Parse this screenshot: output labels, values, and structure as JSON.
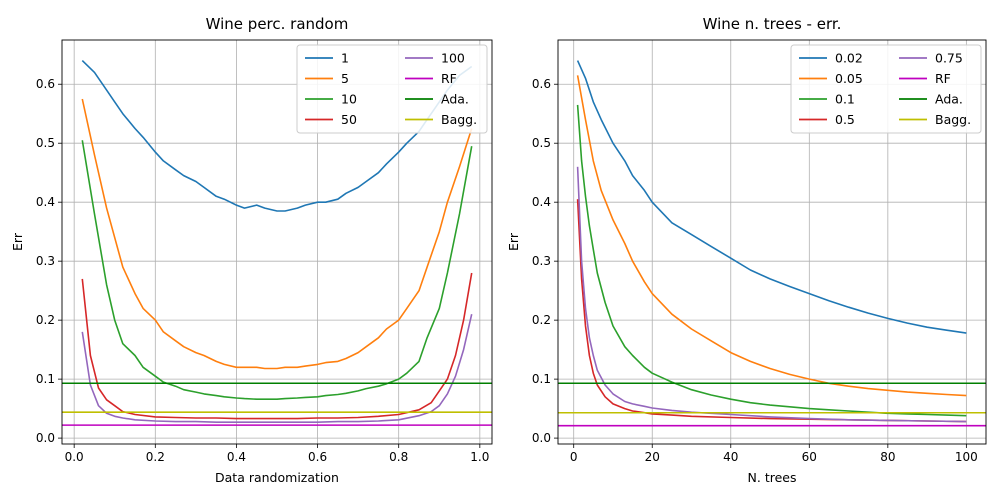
{
  "chart_data": [
    {
      "type": "line",
      "title": "Wine perc. random",
      "xlabel": "Data randomization",
      "ylabel": "Err",
      "xlim": [
        -0.03,
        1.03
      ],
      "ylim": [
        -0.01,
        0.675
      ],
      "xticks": [
        0.0,
        0.2,
        0.4,
        0.6,
        0.8,
        1.0
      ],
      "xtick_labels": [
        "0.0",
        "0.2",
        "0.4",
        "0.6",
        "0.8",
        "1.0"
      ],
      "yticks": [
        0.0,
        0.1,
        0.2,
        0.3,
        0.4,
        0.5,
        0.6
      ],
      "ytick_labels": [
        "0.0",
        "0.1",
        "0.2",
        "0.3",
        "0.4",
        "0.5",
        "0.6"
      ],
      "grid": true,
      "legend_position": "top-right",
      "legend_columns": 2,
      "series": [
        {
          "name": "1",
          "color": "#1f77b4",
          "x": [
            0.02,
            0.05,
            0.08,
            0.1,
            0.12,
            0.15,
            0.17,
            0.2,
            0.22,
            0.25,
            0.27,
            0.3,
            0.32,
            0.35,
            0.37,
            0.4,
            0.42,
            0.45,
            0.47,
            0.5,
            0.52,
            0.55,
            0.57,
            0.6,
            0.62,
            0.65,
            0.67,
            0.7,
            0.72,
            0.75,
            0.77,
            0.8,
            0.82,
            0.85,
            0.87,
            0.9,
            0.92,
            0.95,
            0.98
          ],
          "y": [
            0.64,
            0.62,
            0.59,
            0.57,
            0.55,
            0.525,
            0.51,
            0.485,
            0.47,
            0.455,
            0.445,
            0.435,
            0.425,
            0.41,
            0.405,
            0.395,
            0.39,
            0.395,
            0.39,
            0.385,
            0.385,
            0.39,
            0.395,
            0.4,
            0.4,
            0.405,
            0.415,
            0.425,
            0.435,
            0.45,
            0.465,
            0.485,
            0.5,
            0.52,
            0.54,
            0.57,
            0.59,
            0.615,
            0.63
          ]
        },
        {
          "name": "5",
          "color": "#ff7f0e",
          "x": [
            0.02,
            0.05,
            0.08,
            0.1,
            0.12,
            0.15,
            0.17,
            0.2,
            0.22,
            0.25,
            0.27,
            0.3,
            0.32,
            0.35,
            0.37,
            0.4,
            0.42,
            0.45,
            0.47,
            0.5,
            0.52,
            0.55,
            0.57,
            0.6,
            0.62,
            0.65,
            0.67,
            0.7,
            0.72,
            0.75,
            0.77,
            0.8,
            0.82,
            0.85,
            0.87,
            0.9,
            0.92,
            0.95,
            0.98
          ],
          "y": [
            0.575,
            0.48,
            0.39,
            0.34,
            0.29,
            0.245,
            0.22,
            0.2,
            0.18,
            0.165,
            0.155,
            0.145,
            0.14,
            0.13,
            0.125,
            0.12,
            0.12,
            0.12,
            0.118,
            0.118,
            0.12,
            0.12,
            0.122,
            0.125,
            0.128,
            0.13,
            0.135,
            0.145,
            0.155,
            0.17,
            0.185,
            0.2,
            0.22,
            0.25,
            0.29,
            0.35,
            0.4,
            0.46,
            0.525
          ]
        },
        {
          "name": "10",
          "color": "#2ca02c",
          "x": [
            0.02,
            0.05,
            0.08,
            0.1,
            0.12,
            0.15,
            0.17,
            0.2,
            0.22,
            0.25,
            0.27,
            0.3,
            0.32,
            0.35,
            0.37,
            0.4,
            0.42,
            0.45,
            0.47,
            0.5,
            0.52,
            0.55,
            0.57,
            0.6,
            0.62,
            0.65,
            0.67,
            0.7,
            0.72,
            0.75,
            0.77,
            0.8,
            0.82,
            0.85,
            0.87,
            0.9,
            0.92,
            0.95,
            0.98
          ],
          "y": [
            0.505,
            0.38,
            0.26,
            0.2,
            0.16,
            0.14,
            0.12,
            0.105,
            0.095,
            0.088,
            0.082,
            0.078,
            0.075,
            0.072,
            0.07,
            0.068,
            0.067,
            0.066,
            0.066,
            0.066,
            0.067,
            0.068,
            0.069,
            0.07,
            0.072,
            0.074,
            0.076,
            0.08,
            0.084,
            0.088,
            0.092,
            0.1,
            0.11,
            0.13,
            0.17,
            0.22,
            0.28,
            0.38,
            0.495
          ]
        },
        {
          "name": "50",
          "color": "#d62728",
          "x": [
            0.02,
            0.04,
            0.06,
            0.08,
            0.1,
            0.12,
            0.15,
            0.2,
            0.25,
            0.3,
            0.35,
            0.4,
            0.45,
            0.5,
            0.55,
            0.6,
            0.65,
            0.7,
            0.75,
            0.8,
            0.85,
            0.88,
            0.9,
            0.92,
            0.94,
            0.96,
            0.98
          ],
          "y": [
            0.27,
            0.14,
            0.085,
            0.065,
            0.055,
            0.045,
            0.04,
            0.036,
            0.035,
            0.034,
            0.034,
            0.033,
            0.033,
            0.033,
            0.033,
            0.034,
            0.034,
            0.035,
            0.037,
            0.04,
            0.048,
            0.06,
            0.08,
            0.1,
            0.14,
            0.2,
            0.28
          ]
        },
        {
          "name": "100",
          "color": "#9467bd",
          "x": [
            0.02,
            0.04,
            0.06,
            0.08,
            0.1,
            0.12,
            0.15,
            0.2,
            0.25,
            0.3,
            0.35,
            0.4,
            0.45,
            0.5,
            0.55,
            0.6,
            0.65,
            0.7,
            0.75,
            0.8,
            0.85,
            0.88,
            0.9,
            0.92,
            0.94,
            0.96,
            0.98
          ],
          "y": [
            0.18,
            0.09,
            0.055,
            0.042,
            0.037,
            0.034,
            0.031,
            0.029,
            0.028,
            0.028,
            0.027,
            0.027,
            0.027,
            0.027,
            0.027,
            0.027,
            0.028,
            0.028,
            0.029,
            0.031,
            0.038,
            0.045,
            0.055,
            0.075,
            0.105,
            0.15,
            0.21
          ]
        },
        {
          "name": "RF",
          "color": "#bf00bf",
          "hline": 0.022
        },
        {
          "name": "Ada.",
          "color": "#007f00",
          "hline": 0.093
        },
        {
          "name": "Bagg.",
          "color": "#bfbf00",
          "hline": 0.044
        }
      ]
    },
    {
      "type": "line",
      "title": "Wine n. trees - err.",
      "xlabel": "N. trees",
      "ylabel": "Err",
      "xlim": [
        -4,
        105
      ],
      "ylim": [
        -0.01,
        0.675
      ],
      "xticks": [
        0,
        20,
        40,
        60,
        80,
        100
      ],
      "xtick_labels": [
        "0",
        "20",
        "40",
        "60",
        "80",
        "100"
      ],
      "yticks": [
        0.0,
        0.1,
        0.2,
        0.3,
        0.4,
        0.5,
        0.6
      ],
      "ytick_labels": [
        "0.0",
        "0.1",
        "0.2",
        "0.3",
        "0.4",
        "0.5",
        "0.6"
      ],
      "grid": true,
      "legend_position": "top-right",
      "legend_columns": 2,
      "series": [
        {
          "name": "0.02",
          "color": "#1f77b4",
          "x": [
            1,
            3,
            5,
            7,
            10,
            13,
            15,
            18,
            20,
            25,
            30,
            35,
            40,
            45,
            50,
            55,
            60,
            65,
            70,
            75,
            80,
            85,
            90,
            95,
            100
          ],
          "y": [
            0.64,
            0.61,
            0.57,
            0.54,
            0.5,
            0.47,
            0.445,
            0.42,
            0.4,
            0.365,
            0.345,
            0.325,
            0.305,
            0.285,
            0.27,
            0.257,
            0.245,
            0.233,
            0.222,
            0.212,
            0.203,
            0.195,
            0.188,
            0.183,
            0.178
          ]
        },
        {
          "name": "0.05",
          "color": "#ff7f0e",
          "x": [
            1,
            3,
            5,
            7,
            10,
            13,
            15,
            18,
            20,
            25,
            30,
            35,
            40,
            45,
            50,
            55,
            60,
            65,
            70,
            75,
            80,
            85,
            90,
            95,
            100
          ],
          "y": [
            0.615,
            0.54,
            0.47,
            0.42,
            0.37,
            0.33,
            0.3,
            0.265,
            0.245,
            0.21,
            0.185,
            0.165,
            0.145,
            0.13,
            0.118,
            0.108,
            0.1,
            0.093,
            0.088,
            0.084,
            0.081,
            0.078,
            0.076,
            0.074,
            0.072
          ]
        },
        {
          "name": "0.1",
          "color": "#2ca02c",
          "x": [
            1,
            2,
            3,
            4,
            5,
            6,
            8,
            10,
            13,
            15,
            18,
            20,
            25,
            30,
            35,
            40,
            45,
            50,
            55,
            60,
            65,
            70,
            75,
            80,
            85,
            90,
            95,
            100
          ],
          "y": [
            0.565,
            0.47,
            0.41,
            0.36,
            0.32,
            0.28,
            0.23,
            0.19,
            0.155,
            0.14,
            0.12,
            0.11,
            0.095,
            0.082,
            0.073,
            0.066,
            0.06,
            0.056,
            0.053,
            0.05,
            0.048,
            0.046,
            0.044,
            0.042,
            0.041,
            0.04,
            0.039,
            0.038
          ]
        },
        {
          "name": "0.5",
          "color": "#d62728",
          "x": [
            1,
            2,
            3,
            4,
            5,
            6,
            8,
            10,
            13,
            15,
            18,
            20,
            25,
            30,
            40,
            50,
            60,
            70,
            80,
            90,
            100
          ],
          "y": [
            0.405,
            0.27,
            0.19,
            0.14,
            0.11,
            0.09,
            0.07,
            0.058,
            0.05,
            0.046,
            0.043,
            0.041,
            0.039,
            0.037,
            0.035,
            0.033,
            0.032,
            0.031,
            0.03,
            0.029,
            0.028
          ]
        },
        {
          "name": "0.75",
          "color": "#9467bd",
          "x": [
            1,
            2,
            3,
            4,
            5,
            6,
            8,
            10,
            13,
            15,
            18,
            20,
            25,
            30,
            40,
            50,
            60,
            70,
            80,
            90,
            100
          ],
          "y": [
            0.46,
            0.3,
            0.22,
            0.17,
            0.14,
            0.115,
            0.09,
            0.075,
            0.062,
            0.058,
            0.054,
            0.051,
            0.047,
            0.044,
            0.04,
            0.036,
            0.033,
            0.031,
            0.03,
            0.029,
            0.028
          ]
        },
        {
          "name": "RF",
          "color": "#bf00bf",
          "hline": 0.021
        },
        {
          "name": "Ada.",
          "color": "#007f00",
          "hline": 0.093
        },
        {
          "name": "Bagg.",
          "color": "#bfbf00",
          "hline": 0.043
        }
      ]
    }
  ]
}
